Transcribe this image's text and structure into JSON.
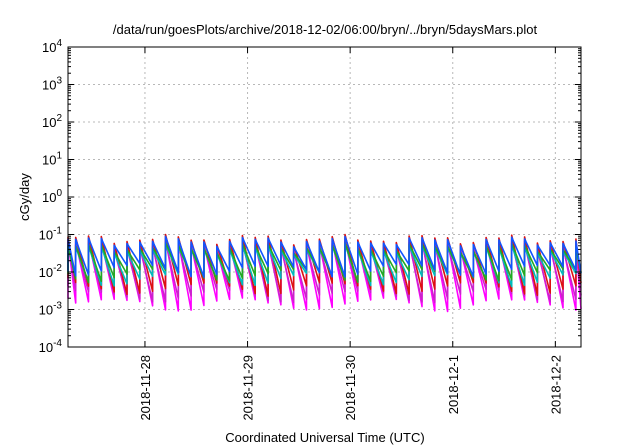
{
  "chart_data": {
    "type": "line",
    "title": "/data/run/goesPlots/archive/2018-12-02/06:00/bryn/../bryn/5daysMars.plot",
    "xlabel": "Coordinated Universal Time (UTC)",
    "ylabel": "cGy/day",
    "yscale": "log",
    "ylim": [
      0.0001,
      10000
    ],
    "y_ticks": [
      {
        "value": 0.0001,
        "mantissa": "10",
        "exp": "-4"
      },
      {
        "value": 0.001,
        "mantissa": "10",
        "exp": "-3"
      },
      {
        "value": 0.01,
        "mantissa": "10",
        "exp": "-2"
      },
      {
        "value": 0.1,
        "mantissa": "10",
        "exp": "-1"
      },
      {
        "value": 1,
        "mantissa": "10",
        "exp": "0"
      },
      {
        "value": 10,
        "mantissa": "10",
        "exp": "1"
      },
      {
        "value": 100,
        "mantissa": "10",
        "exp": "2"
      },
      {
        "value": 1000,
        "mantissa": "10",
        "exp": "3"
      },
      {
        "value": 10000,
        "mantissa": "10",
        "exp": "4"
      }
    ],
    "xlim": [
      "2018-11-27T06:00",
      "2018-12-02T06:00"
    ],
    "x_ticks": [
      "2018-11-28",
      "2018-11-29",
      "2018-11-30",
      "2018-12-1",
      "2018-12-2"
    ],
    "grid": true,
    "legend": "none",
    "sawtooth_period_hours": 3,
    "series": [
      {
        "color": "#ff00ff",
        "peak": 0.07,
        "trough": 0.0015
      },
      {
        "color": "#cc22cc",
        "peak": 0.06,
        "trough": 0.0025
      },
      {
        "color": "#dd1111",
        "peak": 0.09,
        "trough": 0.004
      },
      {
        "color": "#00bbbb",
        "peak": 0.05,
        "trough": 0.007
      },
      {
        "color": "#22aa22",
        "peak": 0.055,
        "trough": 0.009
      },
      {
        "color": "#1155ff",
        "peak": 0.08,
        "trough": 0.012
      }
    ]
  }
}
